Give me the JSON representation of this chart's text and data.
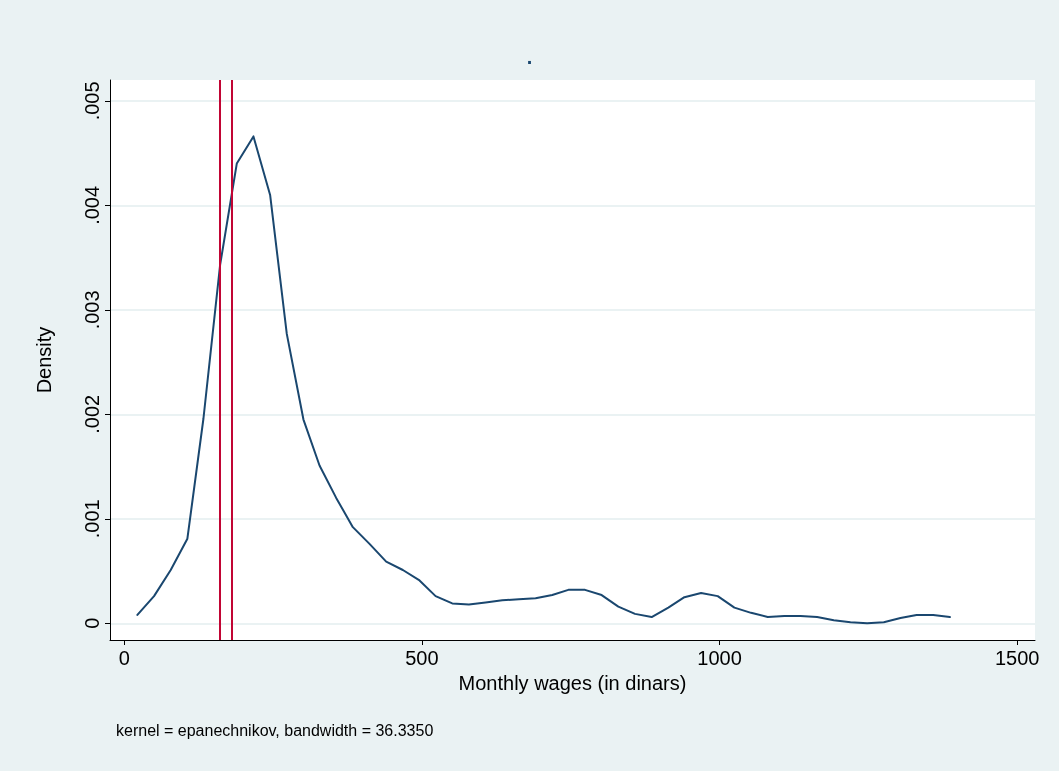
{
  "chart_data": {
    "type": "line",
    "title": ".",
    "xlabel": "Monthly wages (in dinars)",
    "ylabel": "Density",
    "x": [
      22,
      50,
      78,
      106,
      133,
      161,
      189,
      217,
      245,
      273,
      301,
      328,
      356,
      384,
      412,
      440,
      468,
      496,
      523,
      551,
      579,
      607,
      635,
      663,
      691,
      719,
      746,
      774,
      802,
      830,
      858,
      886,
      914,
      941,
      969,
      997,
      1025,
      1053,
      1081,
      1109,
      1136,
      1164,
      1192,
      1220,
      1248,
      1276,
      1304,
      1331,
      1359,
      1387
    ],
    "series": [
      {
        "color": "#1a476f",
        "values": [
          8e-05,
          0.00026,
          0.00051,
          0.00081,
          0.00196,
          0.00343,
          0.0044,
          0.00466,
          0.0041,
          0.00277,
          0.00195,
          0.00151,
          0.0012,
          0.00092,
          0.00076,
          0.00059,
          0.00051,
          0.00041,
          0.00026,
          0.00019,
          0.00018,
          0.0002,
          0.00022,
          0.00023,
          0.00024,
          0.00027,
          0.00032,
          0.00032,
          0.00027,
          0.00016,
          9e-05,
          6e-05,
          0.00015,
          0.00025,
          0.00029,
          0.00026,
          0.00015,
          0.0001,
          6e-05,
          7e-05,
          7e-05,
          6e-05,
          3e-05,
          1e-05,
          0,
          1e-05,
          5e-05,
          8e-05,
          8e-05,
          6e-05
        ]
      }
    ],
    "xlim": [
      -24,
      1530
    ],
    "xticks": [
      0,
      500,
      1000,
      1500
    ],
    "ylim": [
      -0.00016,
      0.0052
    ],
    "yticks": [
      {
        "value": 0,
        "label": "0"
      },
      {
        "value": 0.001,
        "label": ".001"
      },
      {
        "value": 0.002,
        "label": ".002"
      },
      {
        "value": 0.003,
        "label": ".003"
      },
      {
        "value": 0.004,
        "label": ".004"
      },
      {
        "value": 0.005,
        "label": ".005"
      }
    ],
    "grid": "y",
    "marker": "none",
    "line_style": "solid",
    "ref_lines": [
      {
        "axis": "x",
        "value": 161,
        "color": "#c10534"
      },
      {
        "axis": "x",
        "value": 181,
        "color": "#c10534"
      }
    ],
    "annotations": [
      "kernel = epanechnikov, bandwidth = 36.3350"
    ]
  }
}
